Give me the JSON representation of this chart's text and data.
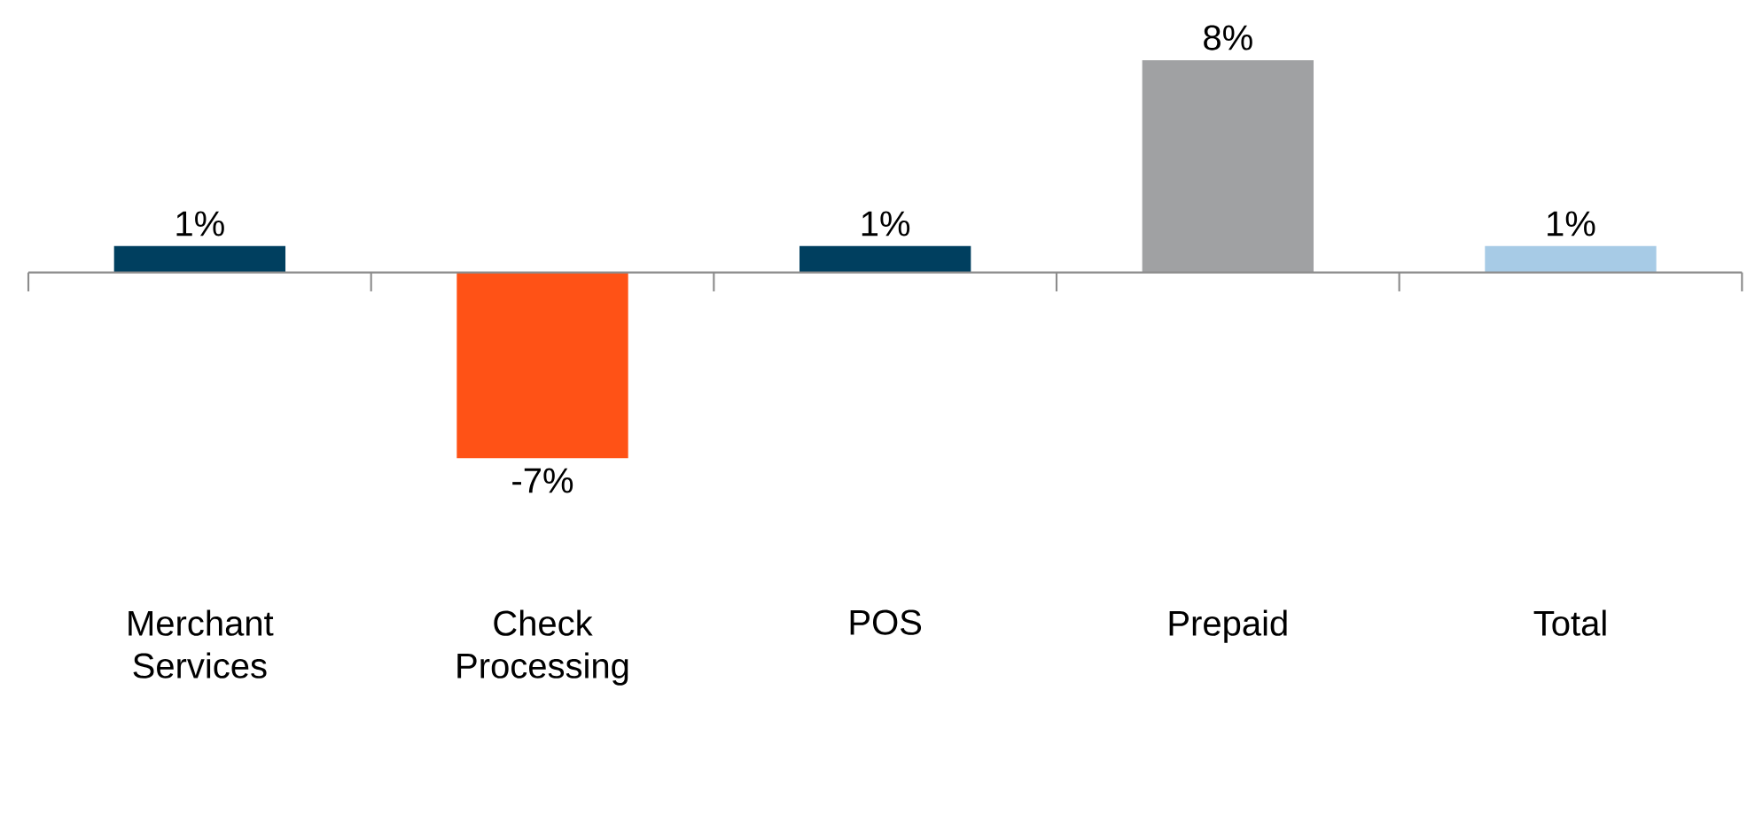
{
  "chart_data": {
    "type": "bar",
    "categories": [
      "Merchant Services",
      "Check Processing",
      "POS",
      "Prepaid",
      "Total"
    ],
    "values": [
      1,
      -7,
      1,
      8,
      1
    ],
    "colors": [
      "#003f5f",
      "#ff5216",
      "#003f5f",
      "#a0a1a3",
      "#a7cbe6"
    ],
    "value_labels": [
      "1%",
      "-7%",
      "1%",
      "8%",
      "1%"
    ]
  }
}
